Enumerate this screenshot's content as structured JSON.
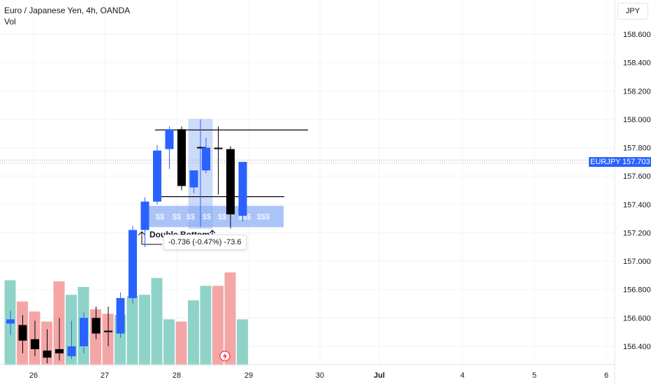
{
  "header": {
    "symbol_title": "Euro / Japanese Yen, 4h, OANDA",
    "volume_label": "Vol"
  },
  "price_axis": {
    "currency": "JPY",
    "symbol_tag": "EURJPY",
    "last_price": "157.703"
  },
  "annotations": {
    "pattern_label": "Double Bottom",
    "measure_text": "-0.736 (-0.47%) -73.6",
    "zone_labels": [
      "$$",
      "$$",
      "$$",
      "$$",
      "$$",
      "$$$",
      "$$$"
    ]
  },
  "colors": {
    "bull": "#2962ff",
    "bear": "#000000",
    "vol_up": "#8fd3c8",
    "vol_down": "#f4a6a6",
    "zone": "#8fb0f5",
    "last_price_line": "#2962ff"
  },
  "chart_data": {
    "type": "candlestick",
    "price_ticks": [
      "158.600",
      "158.400",
      "158.200",
      "158.000",
      "157.800",
      "157.600",
      "157.400",
      "157.200",
      "157.000",
      "156.800",
      "156.600",
      "156.400"
    ],
    "time_ticks": [
      "26",
      "27",
      "28",
      "29",
      "30",
      "Jul",
      "4",
      "5",
      "6"
    ],
    "ylim": [
      156.3,
      158.75
    ],
    "last_price": 157.703,
    "resistance_level": 157.925,
    "support_level": 157.455,
    "candles": [
      {
        "o": 156.59,
        "h": 156.65,
        "l": 156.48,
        "c": 156.56,
        "dir": "bull"
      },
      {
        "o": 156.55,
        "h": 156.62,
        "l": 156.35,
        "c": 156.44,
        "dir": "bear"
      },
      {
        "o": 156.45,
        "h": 156.58,
        "l": 156.33,
        "c": 156.38,
        "dir": "bear"
      },
      {
        "o": 156.37,
        "h": 156.52,
        "l": 156.28,
        "c": 156.32,
        "dir": "bear"
      },
      {
        "o": 156.38,
        "h": 156.6,
        "l": 156.3,
        "c": 156.35,
        "dir": "bear"
      },
      {
        "o": 156.33,
        "h": 156.58,
        "l": 156.31,
        "c": 156.4,
        "dir": "bull"
      },
      {
        "o": 156.4,
        "h": 156.64,
        "l": 156.35,
        "c": 156.6,
        "dir": "bull"
      },
      {
        "o": 156.6,
        "h": 156.68,
        "l": 156.45,
        "c": 156.49,
        "dir": "bear"
      },
      {
        "o": 156.51,
        "h": 156.68,
        "l": 156.4,
        "c": 156.5,
        "dir": "bear"
      },
      {
        "o": 156.49,
        "h": 156.78,
        "l": 156.46,
        "c": 156.74,
        "dir": "bull"
      },
      {
        "o": 156.74,
        "h": 157.25,
        "l": 156.7,
        "c": 157.22,
        "dir": "bull"
      },
      {
        "o": 157.22,
        "h": 157.45,
        "l": 157.1,
        "c": 157.42,
        "dir": "bull"
      },
      {
        "o": 157.42,
        "h": 157.82,
        "l": 157.4,
        "c": 157.78,
        "dir": "bull"
      },
      {
        "o": 157.79,
        "h": 157.95,
        "l": 157.65,
        "c": 157.93,
        "dir": "bull"
      },
      {
        "o": 157.93,
        "h": 157.95,
        "l": 157.5,
        "c": 157.53,
        "dir": "bear"
      },
      {
        "o": 157.52,
        "h": 157.62,
        "l": 157.48,
        "c": 157.64,
        "dir": "bull"
      },
      {
        "o": 157.64,
        "h": 157.87,
        "l": 157.62,
        "c": 157.8,
        "dir": "bull"
      },
      {
        "o": 157.8,
        "h": 157.95,
        "l": 157.47,
        "c": 157.79,
        "dir": "bear"
      },
      {
        "o": 157.79,
        "h": 157.81,
        "l": 157.23,
        "c": 157.33,
        "dir": "bear"
      },
      {
        "o": 157.32,
        "h": 157.7,
        "l": 157.28,
        "c": 157.7,
        "dir": "bull"
      }
    ],
    "volume": {
      "max": 100,
      "bars": [
        {
          "v": 76,
          "dir": "up"
        },
        {
          "v": 57,
          "dir": "down"
        },
        {
          "v": 48,
          "dir": "down"
        },
        {
          "v": 39,
          "dir": "down"
        },
        {
          "v": 75,
          "dir": "down"
        },
        {
          "v": 63,
          "dir": "up"
        },
        {
          "v": 70,
          "dir": "up"
        },
        {
          "v": 50,
          "dir": "down"
        },
        {
          "v": 46,
          "dir": "down"
        },
        {
          "v": 45,
          "dir": "up"
        },
        {
          "v": 62,
          "dir": "up"
        },
        {
          "v": 63,
          "dir": "up"
        },
        {
          "v": 78,
          "dir": "up"
        },
        {
          "v": 41,
          "dir": "up"
        },
        {
          "v": 39,
          "dir": "down"
        },
        {
          "v": 58,
          "dir": "up"
        },
        {
          "v": 71,
          "dir": "up"
        },
        {
          "v": 71,
          "dir": "down"
        },
        {
          "v": 83,
          "dir": "down"
        },
        {
          "v": 41,
          "dir": "up"
        }
      ]
    }
  }
}
